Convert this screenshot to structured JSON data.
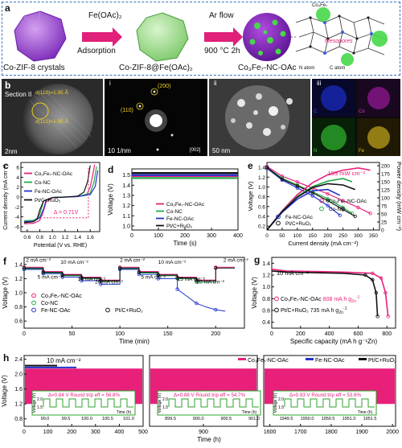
{
  "panel_labels": [
    "a",
    "b",
    "c",
    "d",
    "e",
    "f",
    "g",
    "h"
  ],
  "panel_a": {
    "label1": "Co-ZIF-8 crystals",
    "arrow1_top": "Fe(OAc)₂",
    "arrow1_bottom": "Adsorption",
    "label2": "Co-ZIF-8@Fe(OAc)₂",
    "arrow2_top": "Ar flow",
    "arrow2_bottom": "900 °C 2h",
    "label3": "Co₃Fe₇-NC-OAc",
    "zoom_labels": {
      "alloy": "Co₃Fe₇",
      "mesopores": "Mesopores",
      "n_atom": "N atom",
      "c_atom": "C atom"
    },
    "colors": {
      "crystal": "#9b4fd0",
      "coated": "#9edc8e",
      "particle": "#8b2fc9",
      "arrow": "#e0207a",
      "frame": "#3a6fc0"
    }
  },
  "panel_b": {
    "section": "Section II",
    "d1": "d(110)=1.95 Å",
    "d2": "d(110)=1.95 Å",
    "scale1": "2nm",
    "sub_i": "i",
    "spot200": "(200)",
    "spot110": "(110)",
    "scale_i": "10 1/nm",
    "zone": "[002]",
    "sub_ii": "ii",
    "scale_ii": "50 nm",
    "sub_iii": "iii",
    "map_letters": [
      "C",
      "Co",
      "N",
      "Fe"
    ],
    "map_colors": [
      "#1a2cc8",
      "#b01ab0",
      "#2fb82f",
      "#e0c020"
    ]
  },
  "chart_data": [
    {
      "id": "c",
      "type": "line",
      "xlabel": "Potential (V vs. RHE)",
      "ylabel": "Current density (mA cm⁻²)",
      "xticks": [
        "0.6",
        "0.8",
        "1.0",
        "1.2",
        "1.4",
        "1.6"
      ],
      "yticks": [
        "-6",
        "-4",
        "-2",
        "0",
        "2",
        "4",
        "6"
      ],
      "xlim": [
        0.5,
        1.75
      ],
      "ylim": [
        -7,
        7
      ],
      "annotation": "Δ = 0.71V",
      "series": [
        {
          "name": "Co₃Fe₇-NC-OAc",
          "color": "#e8207a",
          "x": [
            0.55,
            0.7,
            0.8,
            0.85,
            0.9,
            1.0,
            1.2,
            1.4,
            1.55,
            1.6,
            1.64,
            1.67
          ],
          "y": [
            -5.4,
            -5.3,
            -4.7,
            -3.2,
            -1.0,
            -0.1,
            0.0,
            0.1,
            0.6,
            2.0,
            4.5,
            6.6
          ]
        },
        {
          "name": "Co-NC",
          "color": "#23a84a",
          "x": [
            0.55,
            0.7,
            0.78,
            0.82,
            0.86,
            1.0,
            1.2,
            1.4,
            1.6,
            1.66,
            1.7
          ],
          "y": [
            -4.8,
            -4.7,
            -4.2,
            -2.6,
            -0.8,
            -0.1,
            0.0,
            0.1,
            0.8,
            3.0,
            6.2
          ]
        },
        {
          "name": "Fe-NC-OAc",
          "color": "#2233cc",
          "x": [
            0.55,
            0.7,
            0.8,
            0.86,
            0.9,
            1.0,
            1.2,
            1.4,
            1.6,
            1.68,
            1.72
          ],
          "y": [
            -5.0,
            -4.9,
            -4.2,
            -2.4,
            -0.6,
            -0.1,
            0.0,
            0.1,
            0.5,
            2.2,
            5.4
          ]
        },
        {
          "name": "Pt/C+RuO₂",
          "color": "#111111",
          "x": [
            0.55,
            0.7,
            0.76,
            0.8,
            0.86,
            1.0,
            1.2,
            1.4,
            1.5,
            1.56,
            1.6
          ],
          "y": [
            -5.2,
            -5.0,
            -4.3,
            -2.6,
            -0.8,
            -0.1,
            0.0,
            0.2,
            1.0,
            3.2,
            6.4
          ]
        }
      ]
    },
    {
      "id": "d",
      "type": "line",
      "xlabel": "Time (s)",
      "ylabel": "Voltage (V)",
      "xticks": [
        "0",
        "100",
        "200",
        "300",
        "400"
      ],
      "yticks": [
        "1.0",
        "1.1",
        "1.2",
        "1.3",
        "1.4",
        "1.5"
      ],
      "xlim": [
        0,
        400
      ],
      "ylim": [
        0.96,
        1.56
      ],
      "series": [
        {
          "name": "Co₃Fe₇-NC-OAc",
          "color": "#e8207a",
          "x": [
            0,
            400
          ],
          "y": [
            1.49,
            1.49
          ]
        },
        {
          "name": "Co-NC",
          "color": "#23a84a",
          "x": [
            0,
            400
          ],
          "y": [
            1.47,
            1.47
          ]
        },
        {
          "name": "Fe-NC-OAc",
          "color": "#2233cc",
          "x": [
            0,
            400
          ],
          "y": [
            1.5,
            1.5
          ]
        },
        {
          "name": "Pt/C+RuO₂",
          "color": "#111111",
          "x": [
            0,
            400
          ],
          "y": [
            1.52,
            1.52
          ]
        }
      ]
    },
    {
      "id": "e",
      "type": "line",
      "xlabel": "Current density (mA cm⁻²)",
      "ylabel": "Voltage (V)",
      "ylabel2": "Power density (mW cm⁻²)",
      "xticks": [
        "0",
        "50",
        "100",
        "150",
        "200",
        "250",
        "300",
        "350"
      ],
      "yticks": [
        "0.2",
        "0.4",
        "0.6",
        "0.8",
        "1.0",
        "1.2",
        "1.4"
      ],
      "yticks2": [
        "0",
        "25",
        "50",
        "75",
        "100",
        "125",
        "150",
        "175",
        "200"
      ],
      "xlim": [
        0,
        370
      ],
      "ylim": [
        0.12,
        1.5
      ],
      "ylim2": [
        0,
        210
      ],
      "annotation": "193 mW cm⁻²",
      "series": [
        {
          "name": "Co₃Fe₇-NC-OAc",
          "color": "#e8207a",
          "x": [
            0,
            50,
            100,
            150,
            200,
            250,
            300,
            340
          ],
          "y": [
            1.42,
            1.22,
            1.1,
            0.98,
            0.86,
            0.72,
            0.58,
            0.46
          ]
        },
        {
          "name": "Co-NC",
          "color": "#23a84a",
          "x": [
            0,
            50,
            100,
            150,
            200,
            250,
            280
          ],
          "y": [
            1.4,
            1.18,
            1.04,
            0.9,
            0.76,
            0.58,
            0.46
          ]
        },
        {
          "name": "Fe-NC-OAc",
          "color": "#2233cc",
          "x": [
            0,
            50,
            100,
            150,
            200,
            240
          ],
          "y": [
            1.38,
            1.14,
            0.98,
            0.82,
            0.62,
            0.42
          ]
        },
        {
          "name": "Pt/C+RuO₂",
          "color": "#111111",
          "x": [
            0,
            50,
            100,
            150,
            200,
            250,
            290
          ],
          "y": [
            1.4,
            1.16,
            1.02,
            0.88,
            0.72,
            0.54,
            0.4
          ]
        }
      ],
      "power_series": [
        {
          "name": "Co₃Fe₇-NC-OAc",
          "color": "#e8207a",
          "x": [
            0,
            50,
            100,
            150,
            200,
            250,
            300,
            340
          ],
          "y": [
            0,
            60,
            110,
            147,
            172,
            186,
            193,
            186
          ]
        },
        {
          "name": "Co-NC",
          "color": "#23a84a",
          "x": [
            0,
            50,
            100,
            150,
            200,
            250,
            280
          ],
          "y": [
            0,
            58,
            104,
            135,
            152,
            160,
            150
          ]
        },
        {
          "name": "Fe-NC-OAc",
          "color": "#2233cc",
          "x": [
            0,
            50,
            100,
            150,
            200,
            240
          ],
          "y": [
            0,
            55,
            96,
            122,
            126,
            108
          ]
        },
        {
          "name": "Pt/C+RuO₂",
          "color": "#111111",
          "x": [
            0,
            50,
            100,
            150,
            200,
            250,
            290
          ],
          "y": [
            0,
            57,
            102,
            132,
            144,
            140,
            126
          ]
        }
      ]
    },
    {
      "id": "f",
      "type": "line",
      "xlabel": "Time (min)",
      "ylabel": "Voltage (V)",
      "xticks": [
        "0",
        "50",
        "100",
        "150",
        "200"
      ],
      "yticks": [
        "0.6",
        "0.8",
        "1.0",
        "1.2",
        "1.4"
      ],
      "xlim": [
        0,
        230
      ],
      "ylim": [
        0.5,
        1.5
      ],
      "rate_labels": [
        "2 mA cm⁻²",
        "5 mA cm⁻²",
        "10 mA cm⁻²",
        "15 mA cm⁻²",
        "20 mA cm⁻²",
        "2 mA cm⁻²",
        "5 mA cm⁻²",
        "10 mA cm⁻²",
        "15 mA cm⁻²",
        "20 mA cm⁻²",
        "2 mA cm⁻²"
      ],
      "series": [
        {
          "name": "Co₃Fe₇-NC-OAc",
          "color": "#e8207a",
          "x": [
            0,
            20,
            20,
            40,
            40,
            60,
            60,
            80,
            80,
            100,
            100,
            120,
            120,
            140,
            140,
            160,
            160,
            180,
            180,
            200,
            200,
            220
          ],
          "y": [
            1.36,
            1.36,
            1.3,
            1.3,
            1.26,
            1.26,
            1.22,
            1.22,
            1.18,
            1.18,
            1.36,
            1.36,
            1.3,
            1.3,
            1.26,
            1.26,
            1.22,
            1.22,
            1.18,
            1.18,
            1.36,
            1.36
          ]
        },
        {
          "name": "Co-NC",
          "color": "#23a84a",
          "x": [
            0,
            20,
            20,
            40,
            40,
            60,
            60,
            80,
            80,
            100,
            100,
            120,
            120,
            140,
            140,
            160,
            160,
            180,
            180,
            200
          ],
          "y": [
            1.34,
            1.34,
            1.28,
            1.28,
            1.24,
            1.24,
            1.2,
            1.2,
            1.16,
            1.16,
            1.34,
            1.34,
            1.28,
            1.28,
            1.24,
            1.24,
            1.2,
            1.2,
            1.15,
            1.15
          ]
        },
        {
          "name": "Fe-NC-OAc",
          "color": "#2233cc",
          "x": [
            0,
            20,
            20,
            40,
            40,
            60,
            60,
            80,
            80,
            100,
            100,
            120,
            120,
            140,
            140,
            160,
            160,
            170,
            180,
            190,
            200,
            210
          ],
          "y": [
            1.33,
            1.33,
            1.27,
            1.27,
            1.22,
            1.22,
            1.17,
            1.17,
            1.12,
            1.12,
            1.33,
            1.33,
            1.26,
            1.26,
            1.2,
            1.2,
            1.05,
            0.95,
            0.85,
            0.8,
            0.76,
            0.74
          ]
        },
        {
          "name": "Pt/C+RuO₂",
          "color": "#111111",
          "x": [
            0,
            20,
            20,
            40,
            40,
            60,
            60,
            80,
            80,
            100,
            100,
            120,
            120,
            140,
            140,
            160,
            160,
            180,
            180,
            200,
            200,
            220
          ],
          "y": [
            1.35,
            1.35,
            1.29,
            1.29,
            1.25,
            1.25,
            1.21,
            1.21,
            1.17,
            1.17,
            1.35,
            1.35,
            1.29,
            1.29,
            1.25,
            1.25,
            1.21,
            1.21,
            1.17,
            1.17,
            1.35,
            1.35
          ]
        }
      ]
    },
    {
      "id": "g",
      "type": "line",
      "xlabel": "Specific capacity (mA h g⁻¹Zn)",
      "ylabel": "Voltage (V)",
      "xticks": [
        "0",
        "200",
        "400",
        "600",
        "800"
      ],
      "yticks": [
        "0.4",
        "0.6",
        "0.8",
        "1.0",
        "1.2",
        "1.4"
      ],
      "xlim": [
        0,
        860
      ],
      "ylim": [
        0.3,
        1.5
      ],
      "rate_label": "10 mA cm⁻²",
      "series": [
        {
          "name": "Co₃Fe₇-NC-OAc 808 mA h g⁻¹Zn",
          "color": "#e8207a",
          "x": [
            0,
            100,
            300,
            500,
            700,
            760,
            790,
            808
          ],
          "y": [
            1.3,
            1.27,
            1.26,
            1.25,
            1.23,
            1.15,
            0.9,
            0.5
          ]
        },
        {
          "name": "Pt/C+RuO₂ 735 mA h g⁻¹Zn",
          "color": "#111111",
          "x": [
            0,
            100,
            300,
            500,
            650,
            700,
            725,
            735
          ],
          "y": [
            1.27,
            1.25,
            1.24,
            1.23,
            1.2,
            1.12,
            0.9,
            0.5
          ]
        }
      ],
      "legend_text": [
        {
          "name": "Co₃Fe₇-NC-OAc",
          "value": "808 mA h g",
          "sub": "Zn",
          "sup": "-1",
          "color": "#e8207a"
        },
        {
          "name": "Pt/C+RuO₂",
          "value": "735 mA h g",
          "sub": "Zn",
          "sup": "-1",
          "color": "#111111"
        }
      ]
    },
    {
      "id": "h",
      "type": "area",
      "xlabel": "Time (h)",
      "ylabel": "Voltage (V)",
      "xticks": [
        "0",
        "100",
        "200",
        "300",
        "400",
        "500",
        "900",
        "1600",
        "1700",
        "1800",
        "1900",
        "2000"
      ],
      "yticks": [
        "0.8",
        "1.2",
        "1.6",
        "2.0",
        "2.4"
      ],
      "rate_label": "10 mA cm⁻²",
      "series": [
        {
          "name": "Co₃Fe₇-NC-OAc",
          "color": "#e8207a"
        },
        {
          "name": "Fe-NC-OAc",
          "color": "#2233cc"
        },
        {
          "name": "Pt/C+RuO₂",
          "color": "#111111"
        }
      ],
      "insets": [
        {
          "caption": "Δ=0.84 V  Round trip eff = 56.8%",
          "xticks": [
            "99.0",
            "99.5",
            "100.0",
            "100.5",
            "101.0"
          ],
          "ylabel": "Voltage (V)",
          "yticks": [
            "1.5",
            "2.0"
          ],
          "xlabel": "Time (h)"
        },
        {
          "caption": "Δ=0.88 V  Round trip eff = 54.7%",
          "xticks": [
            "899.5",
            "900.0",
            "900.5",
            "901.0"
          ],
          "ylabel": "Voltage (V)",
          "yticks": [
            "1.5",
            "2.0"
          ],
          "xlabel": "Time (h)"
        },
        {
          "caption": "Δ=0.93 V  Round trip eff = 53.6%",
          "xticks": [
            "1949.5",
            "1950.0",
            "1950.5",
            "1951.0",
            "1951.5"
          ],
          "ylabel": "Voltage (V)",
          "yticks": [
            "1.5",
            "2.0"
          ],
          "xlabel": "Time (h)"
        }
      ]
    }
  ]
}
